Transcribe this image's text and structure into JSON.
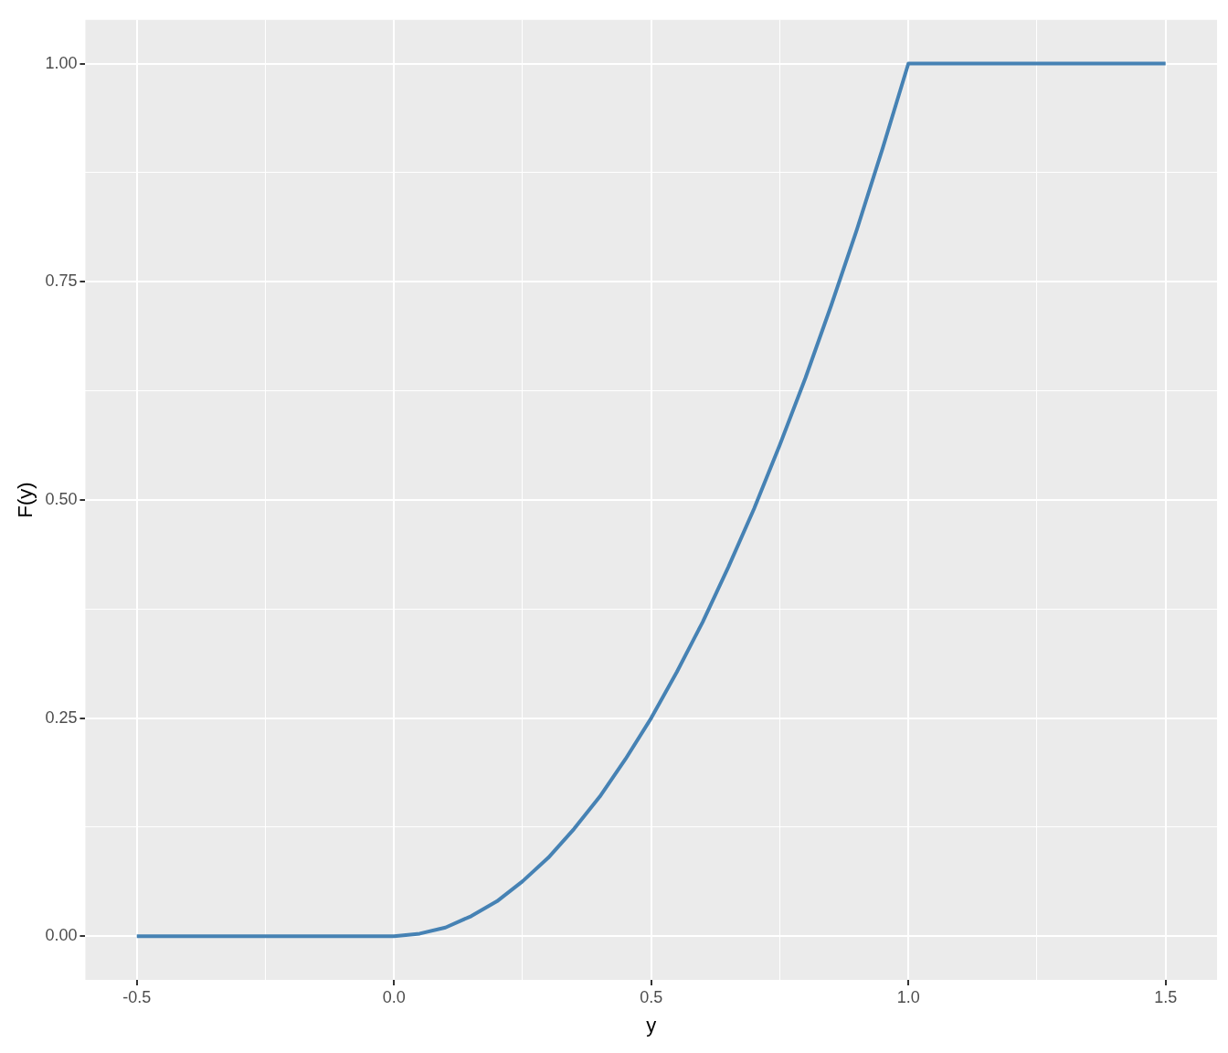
{
  "chart_data": {
    "type": "line",
    "xlabel": "y",
    "ylabel": "F(y)",
    "x": [
      -0.5,
      0,
      0.05,
      0.1,
      0.15,
      0.2,
      0.25,
      0.3,
      0.35,
      0.4,
      0.45,
      0.5,
      0.55,
      0.6,
      0.65,
      0.7,
      0.75,
      0.8,
      0.85,
      0.9,
      0.95,
      1,
      1.5
    ],
    "series": [
      {
        "color": "#4682b4",
        "values": [
          0,
          0,
          0.003,
          0.01,
          0.023,
          0.04,
          0.063,
          0.09,
          0.123,
          0.16,
          0.203,
          0.25,
          0.303,
          0.36,
          0.423,
          0.49,
          0.563,
          0.64,
          0.723,
          0.81,
          0.903,
          1,
          1
        ]
      }
    ],
    "xlim": [
      -0.6,
      1.6
    ],
    "ylim": [
      -0.05,
      1.05
    ],
    "xticks": [
      {
        "value": -0.5,
        "label": "-0.5"
      },
      {
        "value": -0.25,
        "label": null
      },
      {
        "value": 0,
        "label": "0.0"
      },
      {
        "value": 0.25,
        "label": null
      },
      {
        "value": 0.5,
        "label": "0.5"
      },
      {
        "value": 0.75,
        "label": null
      },
      {
        "value": 1,
        "label": "1.0"
      },
      {
        "value": 1.25,
        "label": null
      },
      {
        "value": 1.5,
        "label": "1.5"
      }
    ],
    "yticks": [
      {
        "value": 0,
        "label": "0.00"
      },
      {
        "value": 0.125,
        "label": null
      },
      {
        "value": 0.25,
        "label": "0.25"
      },
      {
        "value": 0.375,
        "label": null
      },
      {
        "value": 0.5,
        "label": "0.50"
      },
      {
        "value": 0.625,
        "label": null
      },
      {
        "value": 0.75,
        "label": "0.75"
      },
      {
        "value": 0.875,
        "label": null
      },
      {
        "value": 1,
        "label": "1.00"
      }
    ],
    "grid": true,
    "legend": false,
    "marker": "none",
    "line_style": "solid"
  }
}
